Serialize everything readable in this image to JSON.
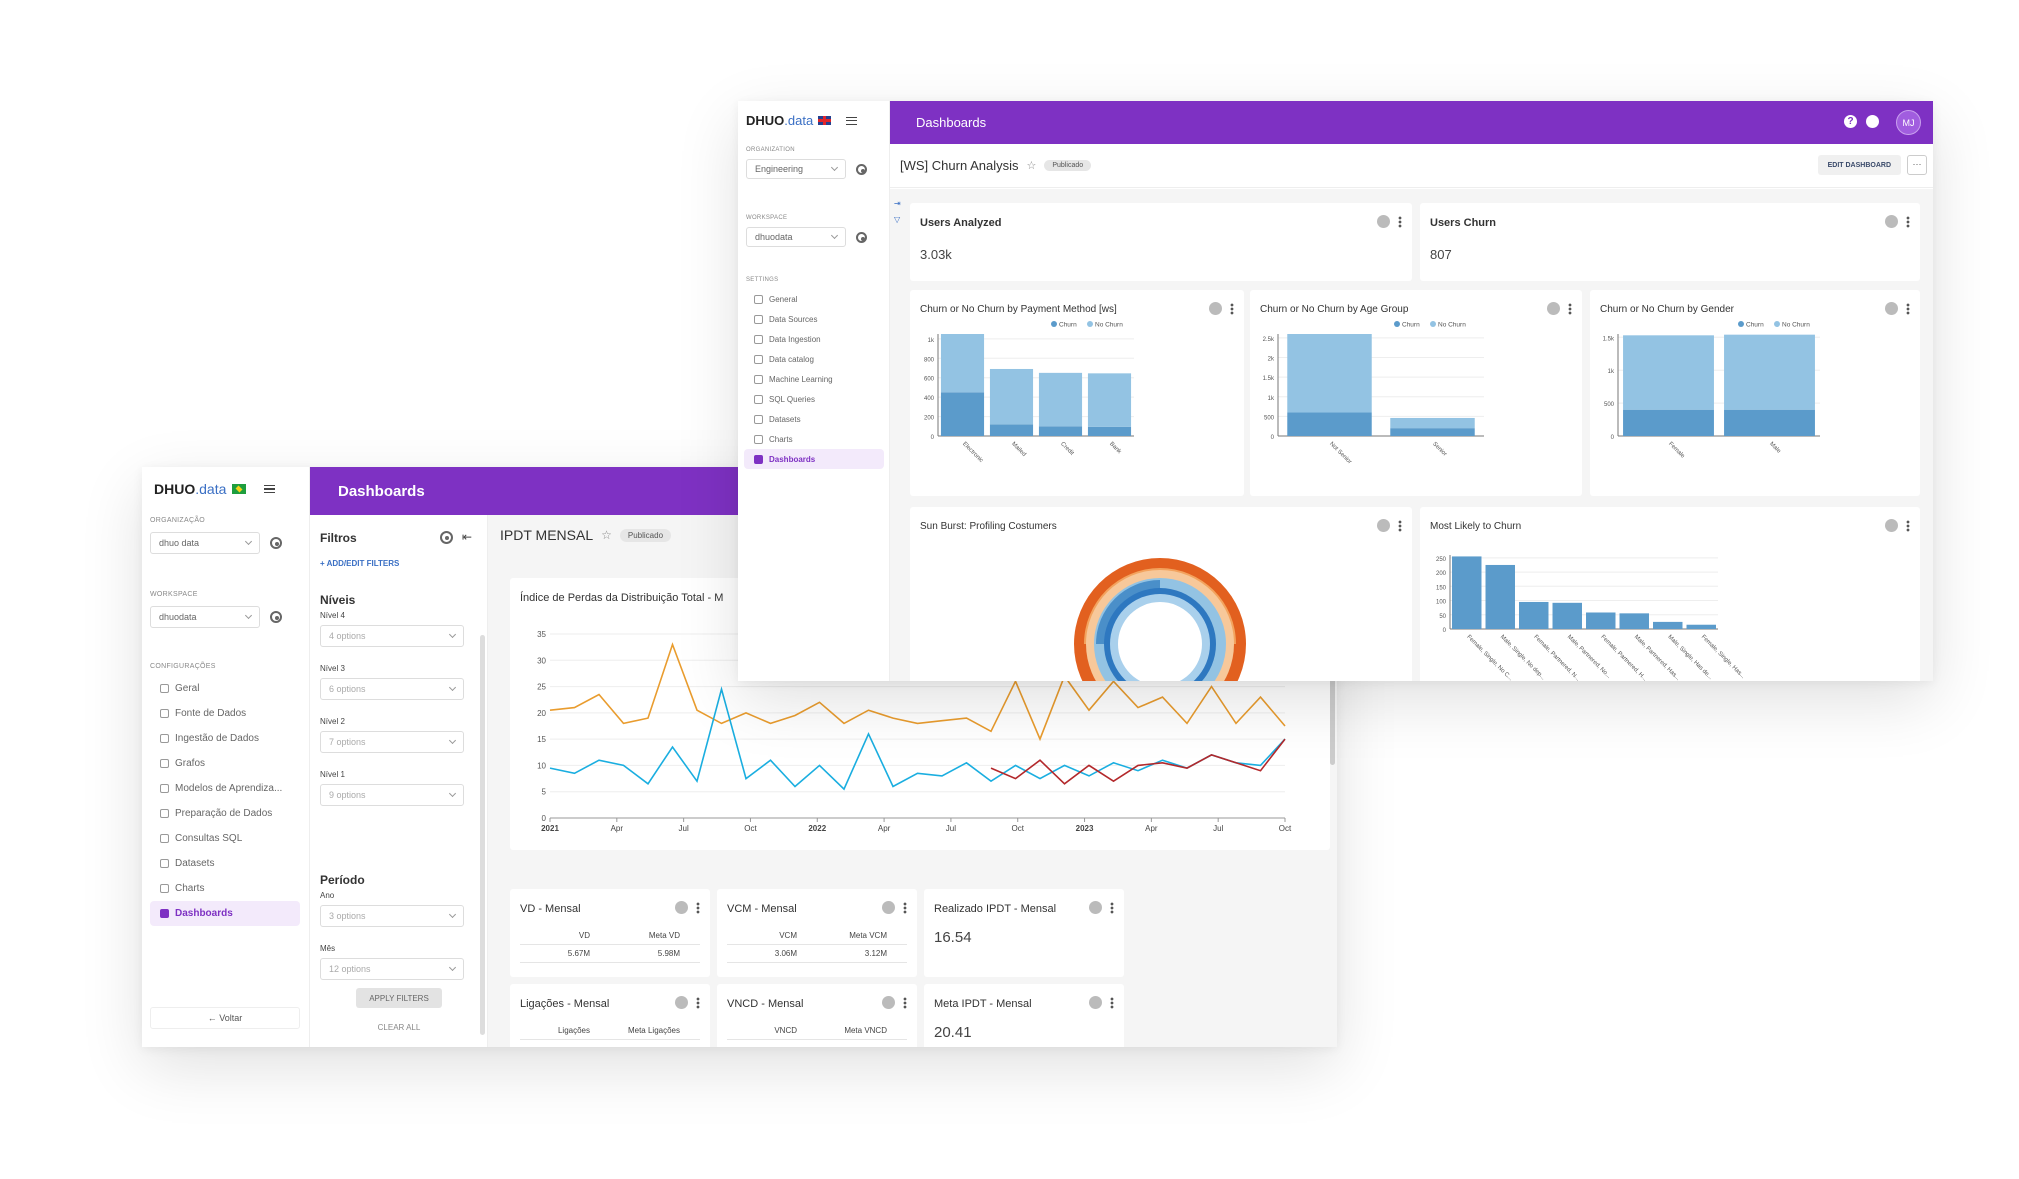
{
  "back": {
    "brand": {
      "name": "DHUO",
      "suffix": ".data"
    },
    "header_title": "Dashboards",
    "org_label": "ORGANIZAÇÃO",
    "org_value": "dhuo data",
    "ws_label": "WORKSPACE",
    "ws_value": "dhuodata",
    "config_label": "CONFIGURAÇÕES",
    "nav": [
      "Geral",
      "Fonte de Dados",
      "Ingestão de Dados",
      "Grafos",
      "Modelos de Aprendiza...",
      "Preparação de Dados",
      "Consultas SQL",
      "Datasets",
      "Charts",
      "Dashboards"
    ],
    "back_label": "← Voltar",
    "filters": {
      "title": "Filtros",
      "add": "+ ADD/EDIT FILTERS",
      "niveis": "Níveis",
      "fields": [
        {
          "label": "Nível 4",
          "value": "4 options"
        },
        {
          "label": "Nível 3",
          "value": "6 options"
        },
        {
          "label": "Nível 2",
          "value": "7 options"
        },
        {
          "label": "Nível 1",
          "value": "9 options"
        }
      ],
      "periodo": "Período",
      "period_fields": [
        {
          "label": "Ano",
          "value": "3 options"
        },
        {
          "label": "Mês",
          "value": "12 options"
        }
      ],
      "apply": "APPLY FILTERS",
      "clear": "CLEAR ALL"
    },
    "dashboard_title": "IPDT MENSAL",
    "status": "Publicado",
    "line_chart_title": "Índice de Perdas da Distribuição Total - M",
    "kpis": [
      {
        "title": "VD - Mensal",
        "col1": "VD",
        "col2": "Meta VD",
        "v1": "5.67M",
        "v2": "5.98M"
      },
      {
        "title": "VCM - Mensal",
        "col1": "VCM",
        "col2": "Meta VCM",
        "v1": "3.06M",
        "v2": "3.12M"
      },
      {
        "title": "Realizado IPDT - Mensal",
        "value": "16.54"
      },
      {
        "title": "Ligações - Mensal",
        "col1": "Ligações",
        "col2": "Meta Ligações"
      },
      {
        "title": "VNCD - Mensal",
        "col1": "VNCD",
        "col2": "Meta VNCD"
      },
      {
        "title": "Meta IPDT - Mensal",
        "value": "20.41"
      }
    ]
  },
  "front": {
    "brand": {
      "name": "DHUO",
      "suffix": ".data"
    },
    "header_title": "Dashboards",
    "avatar": "MJ",
    "org_label": "ORGANIZATION",
    "org_value": "Engineering",
    "ws_label": "WORKSPACE",
    "ws_value": "dhuodata",
    "settings_label": "SETTINGS",
    "nav": [
      "General",
      "Data Sources",
      "Data Ingestion",
      "Data catalog",
      "Machine Learning",
      "SQL Queries",
      "Datasets",
      "Charts",
      "Dashboards"
    ],
    "dashboard_title": "[WS] Churn Analysis",
    "status": "Publicado",
    "edit_button": "EDIT DASHBOARD",
    "more_button": "···",
    "kpi1": {
      "title": "Users Analyzed",
      "value": "3.03k"
    },
    "kpi2": {
      "title": "Users Churn",
      "value": "807"
    },
    "chart_titles": {
      "payment": "Churn or No Churn by Payment Method [ws]",
      "age": "Churn or No Churn by Age Group",
      "gender": "Churn or No Churn by Gender",
      "sunburst": "Sun Burst: Profiling Costumers",
      "likely": "Most Likely to Churn"
    },
    "legend": {
      "churn": "Churn",
      "nochurn": "No Churn"
    }
  },
  "colors": {
    "purple": "#7e31c3",
    "churn": "#5b9bcb",
    "nochurn": "#93c3e3",
    "line_orange": "#e99c2e",
    "line_cyan": "#1aaee0",
    "line_red": "#b3282b"
  },
  "chart_data": [
    {
      "type": "line",
      "title": "Índice de Perdas da Distribuição Total - M",
      "x_ticks": [
        "2021",
        "Apr",
        "Jul",
        "Oct",
        "2022",
        "Apr",
        "Jul",
        "Oct",
        "2023",
        "Apr",
        "Jul",
        "Oct"
      ],
      "y_ticks": [
        0,
        5,
        10,
        15,
        20,
        25,
        30,
        35
      ],
      "ylim": [
        0,
        35
      ],
      "series": [
        {
          "values": [
            20.5,
            21,
            23.5,
            18,
            19,
            33,
            20.5,
            18,
            20,
            18,
            19.5,
            22,
            18,
            20.5,
            19,
            18,
            18.5,
            19,
            16.5,
            26,
            15,
            27,
            20.5,
            26,
            21,
            23,
            18,
            25,
            18,
            23,
            17.5
          ]
        },
        {
          "values": [
            9.5,
            8.5,
            11,
            10,
            6.5,
            13.5,
            7,
            24.5,
            7.5,
            11,
            6,
            10,
            5.5,
            16,
            6,
            8.5,
            8,
            10.5,
            7,
            10,
            7.5,
            10,
            8,
            10.5,
            9,
            11,
            9.5,
            12,
            10.5,
            10,
            15
          ]
        },
        {
          "values": [
            9.5,
            7.5,
            11,
            6.5,
            10,
            7,
            10,
            10.5,
            9.5,
            12,
            10.5,
            9,
            15
          ]
        }
      ]
    },
    {
      "type": "bar",
      "title": "Churn or No Churn by Payment Method [ws]",
      "categories": [
        "Electronic",
        "Mailed",
        "Credit",
        "Bank"
      ],
      "y_ticks": [
        "0",
        "200",
        "400",
        "600",
        "800",
        "1k"
      ],
      "ylim": [
        0,
        1050
      ],
      "series": [
        {
          "name": "Churn",
          "values": [
            450,
            120,
            100,
            95
          ]
        },
        {
          "name": "No Churn",
          "values": [
            600,
            570,
            550,
            550
          ]
        }
      ]
    },
    {
      "type": "bar",
      "title": "Churn or No Churn by Age Group",
      "categories": [
        "Not Senior",
        "Senior"
      ],
      "y_ticks": [
        "0",
        "500",
        "1k",
        "1.5k",
        "2k",
        "2.5k"
      ],
      "ylim": [
        0,
        2600
      ],
      "series": [
        {
          "name": "Churn",
          "values": [
            600,
            200
          ]
        },
        {
          "name": "No Churn",
          "values": [
            2000,
            260
          ]
        }
      ]
    },
    {
      "type": "bar",
      "title": "Churn or No Churn by Gender",
      "categories": [
        "Female",
        "Male"
      ],
      "y_ticks": [
        "0",
        "500",
        "1k",
        "1.5k"
      ],
      "ylim": [
        0,
        1550
      ],
      "series": [
        {
          "name": "Churn",
          "values": [
            400,
            400
          ]
        },
        {
          "name": "No Churn",
          "values": [
            1130,
            1140
          ]
        }
      ]
    },
    {
      "type": "bar",
      "title": "Most Likely to Churn",
      "categories": [
        "Female, Single, No C...",
        "Male, Single, No dep...",
        "Female, Partnered, N...",
        "Male, Partnered, No...",
        "Female, Partnered, H...",
        "Male, Partnered, Has...",
        "Male, Single, Has de...",
        "Female, Single, Has..."
      ],
      "y_ticks": [
        "0",
        "50",
        "100",
        "150",
        "200",
        "250"
      ],
      "ylim": [
        0,
        260
      ],
      "values": [
        255,
        225,
        95,
        92,
        58,
        55,
        25,
        15
      ]
    }
  ]
}
